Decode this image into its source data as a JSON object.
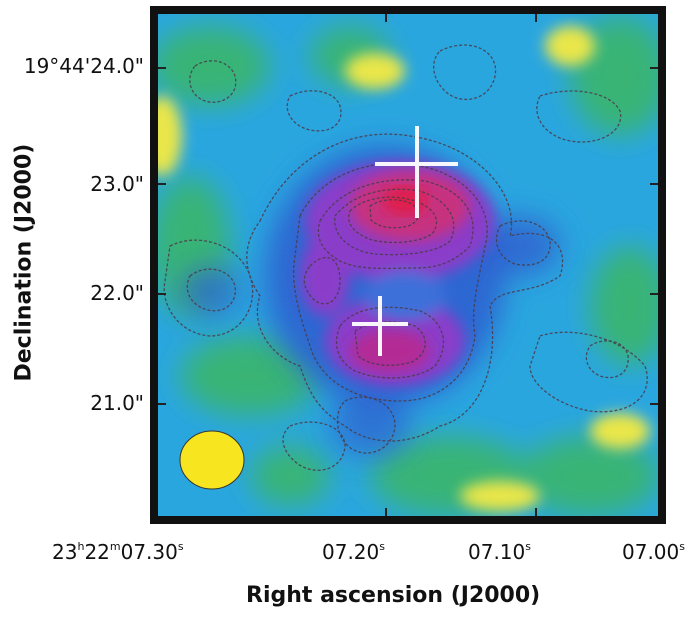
{
  "axes": {
    "y_title": "Declination (J2000)",
    "x_title": "Right ascension (J2000)"
  },
  "y_ticks": [
    {
      "label": "19°44'24.0\""
    },
    {
      "label": "23.0\""
    },
    {
      "label": "22.0\""
    },
    {
      "label": "21.0\""
    }
  ],
  "x_ticks": {
    "first": {
      "h": "23",
      "h_unit": "h",
      "m": "22",
      "m_unit": "m",
      "s": "07.30",
      "s_unit": "s"
    },
    "t2": {
      "v": "07.20",
      "unit": "s"
    },
    "t3": {
      "v": "07.10",
      "unit": "s"
    },
    "t4": {
      "v": "07.00",
      "unit": "s"
    }
  },
  "colors": {
    "frame": "#111111",
    "background_map": "#29a8e0",
    "peak": "#e11d48",
    "markers": "#ffffff",
    "beam": "#f7e51f"
  },
  "markers": [
    "plus-marker-north",
    "plus-marker-south"
  ],
  "beam_icon": "beam-ellipse"
}
